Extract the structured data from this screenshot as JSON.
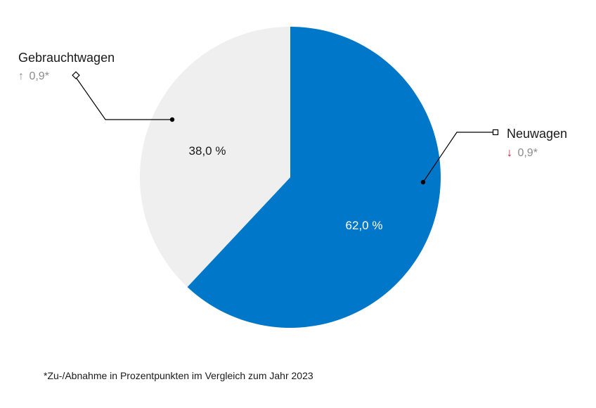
{
  "chart_data": {
    "type": "pie",
    "categories": [
      "Neuwagen",
      "Gebrauchtwagen"
    ],
    "values": [
      62.0,
      38.0
    ],
    "value_labels": [
      "62,0 %",
      "38,0 %"
    ],
    "colors": [
      "#0077c8",
      "#efefef"
    ],
    "value_label_colors": [
      "#ffffff",
      "#1a1a1a"
    ],
    "changes": [
      {
        "direction": "down",
        "arrow": "↓",
        "text": "0,9*",
        "arrow_color": "#c8102e"
      },
      {
        "direction": "up",
        "arrow": "↑",
        "text": "0,9*",
        "arrow_color": "#8c8c8c"
      }
    ],
    "start_angle_deg": 0,
    "direction": "clockwise"
  },
  "footnote": "*Zu-/Abnahme in Prozentpunkten im Vergleich zum Jahr 2023"
}
